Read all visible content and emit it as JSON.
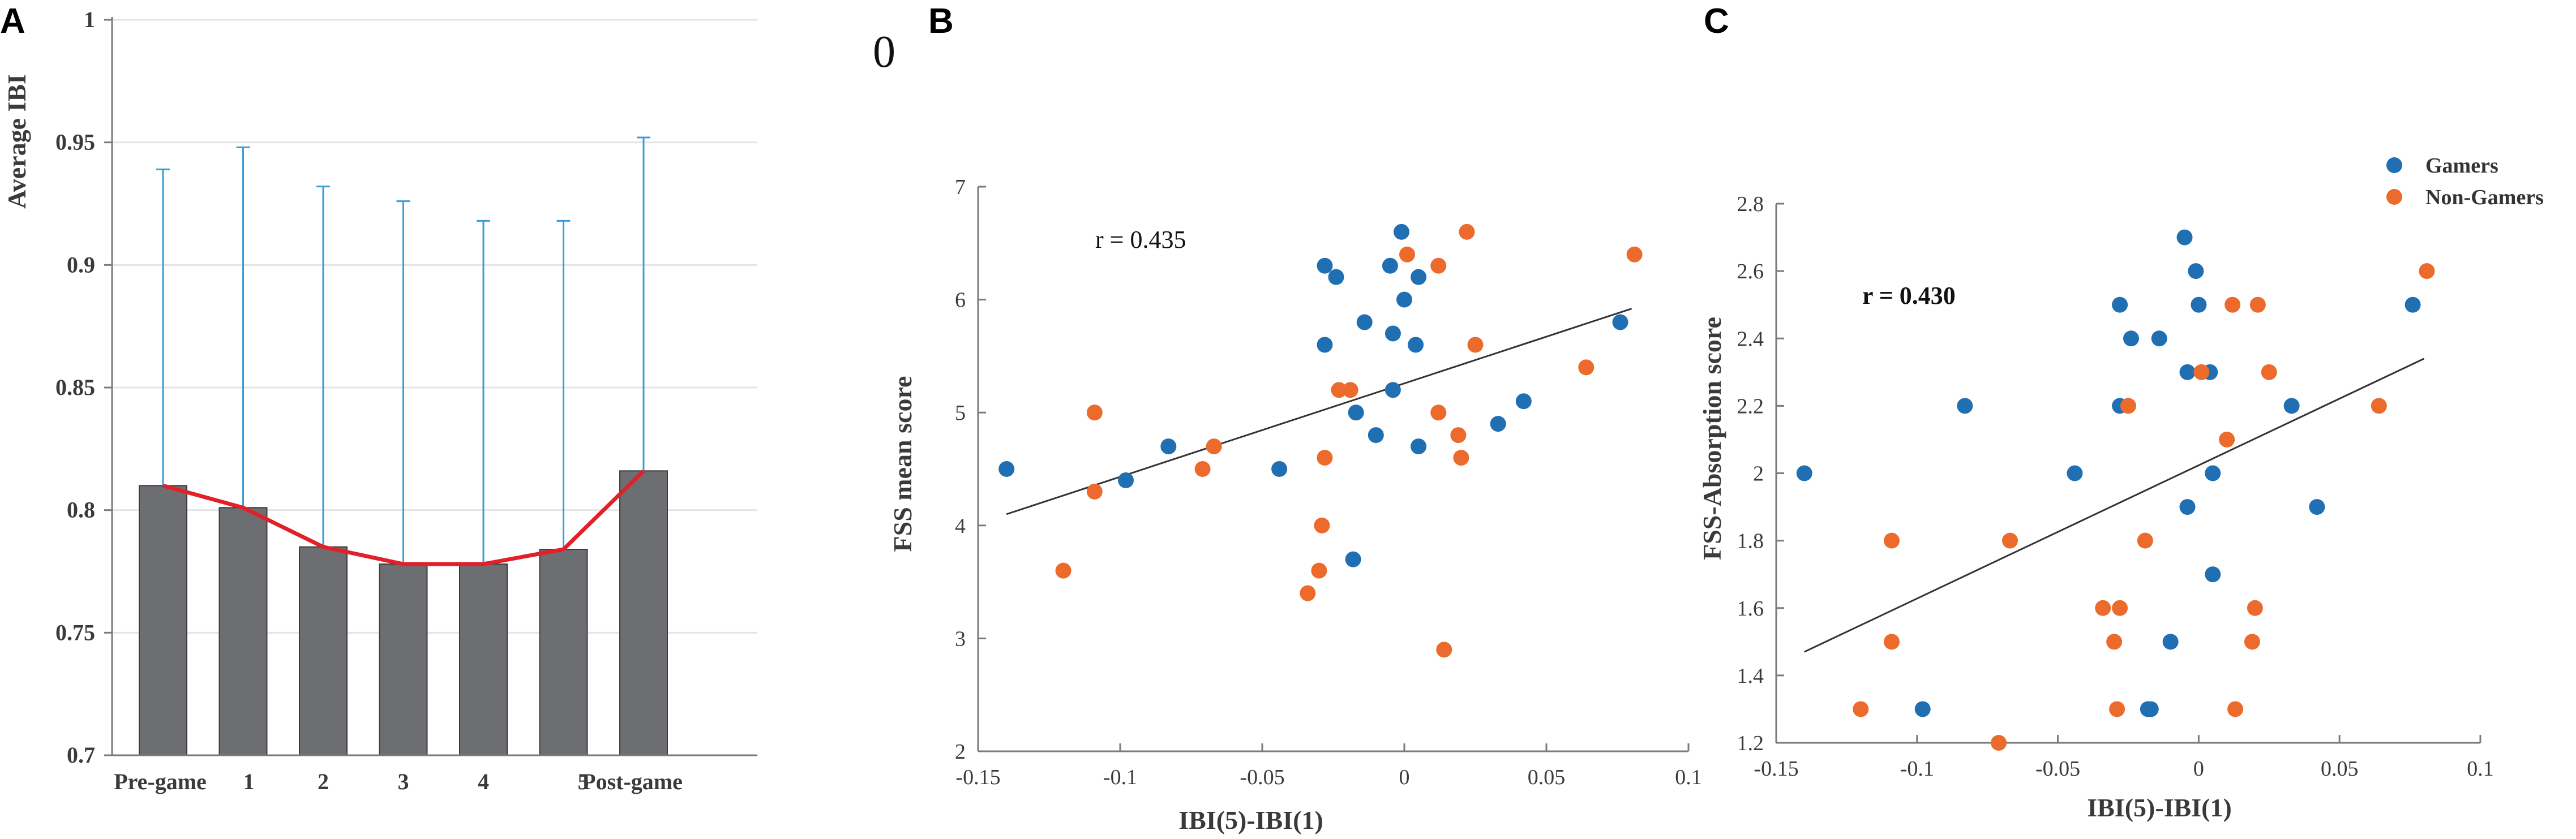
{
  "stray_mark": "0",
  "colors": {
    "gamers": "#1f6fb2",
    "non_gamers": "#ec6a2c",
    "bars": "#6d6e71",
    "errorbar": "#3b9bd6",
    "trend": "#e2202a",
    "axis": "#7a7a7a",
    "grid": "#e4e4e4",
    "fit": "#333333"
  },
  "chart_data": [
    {
      "panel": "A",
      "type": "bar",
      "ylabel": "Average IBI",
      "xlabel": "",
      "categories": [
        "Pre-game",
        "1",
        "2",
        "3",
        "4",
        "5",
        "Post-game"
      ],
      "values": [
        0.81,
        0.801,
        0.785,
        0.778,
        0.778,
        0.784,
        0.816
      ],
      "error_upper": [
        0.939,
        0.948,
        0.932,
        0.926,
        0.918,
        0.918,
        0.952
      ],
      "trend_line": [
        0.81,
        0.801,
        0.785,
        0.778,
        0.778,
        0.784,
        0.816
      ],
      "ylim": [
        0.7,
        1.0
      ],
      "yticks": [
        0.7,
        0.75,
        0.8,
        0.85,
        0.9,
        0.95,
        1
      ],
      "ytick_labels": [
        "0.7",
        "0.75",
        "0.8",
        "0.85",
        "0.9",
        "0.95",
        "1"
      ],
      "grid": true
    },
    {
      "panel": "B",
      "type": "scatter",
      "xlabel": "IBI(5)-IBI(1)",
      "ylabel": "FSS mean score",
      "xlim": [
        -0.15,
        0.1
      ],
      "ylim": [
        2,
        7
      ],
      "xticks": [
        -0.15,
        -0.1,
        -0.05,
        0,
        0.05,
        0.1
      ],
      "xtick_labels": [
        "-0.15",
        "-0.1",
        "-0.05",
        "0",
        "0.05",
        "0.1"
      ],
      "yticks": [
        2,
        3,
        4,
        5,
        6,
        7
      ],
      "ytick_labels": [
        "2",
        "3",
        "4",
        "5",
        "6",
        "7"
      ],
      "annotation": "r = 0.435",
      "fit_line": [
        [
          -0.14,
          4.1
        ],
        [
          0.08,
          5.92
        ]
      ],
      "series": [
        {
          "name": "Gamers",
          "points": [
            [
              -0.14,
              4.5
            ],
            [
              -0.098,
              4.4
            ],
            [
              -0.083,
              4.7
            ],
            [
              -0.044,
              4.5
            ],
            [
              -0.028,
              6.3
            ],
            [
              -0.028,
              5.6
            ],
            [
              -0.024,
              6.2
            ],
            [
              -0.018,
              3.7
            ],
            [
              -0.017,
              5.0
            ],
            [
              -0.014,
              5.8
            ],
            [
              -0.01,
              4.8
            ],
            [
              -0.005,
              6.3
            ],
            [
              -0.004,
              5.7
            ],
            [
              -0.004,
              5.2
            ],
            [
              -0.001,
              6.6
            ],
            [
              0.0,
              6.0
            ],
            [
              0.004,
              5.6
            ],
            [
              0.005,
              6.2
            ],
            [
              0.005,
              4.7
            ],
            [
              0.033,
              4.9
            ],
            [
              0.042,
              5.1
            ],
            [
              0.076,
              5.8
            ]
          ]
        },
        {
          "name": "Non-Gamers",
          "points": [
            [
              -0.12,
              3.6
            ],
            [
              -0.109,
              5.0
            ],
            [
              -0.109,
              4.3
            ],
            [
              -0.071,
              4.5
            ],
            [
              -0.067,
              4.7
            ],
            [
              -0.034,
              3.4
            ],
            [
              -0.03,
              3.6
            ],
            [
              -0.029,
              4.0
            ],
            [
              -0.028,
              4.6
            ],
            [
              -0.023,
              5.2
            ],
            [
              -0.019,
              5.2
            ],
            [
              0.001,
              6.4
            ],
            [
              0.012,
              5.0
            ],
            [
              0.012,
              6.3
            ],
            [
              0.014,
              2.9
            ],
            [
              0.019,
              4.8
            ],
            [
              0.02,
              4.6
            ],
            [
              0.022,
              6.6
            ],
            [
              0.025,
              5.6
            ],
            [
              0.064,
              5.4
            ],
            [
              0.081,
              6.4
            ]
          ]
        }
      ]
    },
    {
      "panel": "C",
      "type": "scatter",
      "xlabel": "IBI(5)-IBI(1)",
      "ylabel": "FSS-Absorption score",
      "xlim": [
        -0.15,
        0.1
      ],
      "ylim": [
        1.2,
        2.8
      ],
      "xticks": [
        -0.15,
        -0.1,
        -0.05,
        0,
        0.05,
        0.1
      ],
      "xtick_labels": [
        "-0.15",
        "-0.1",
        "-0.05",
        "0",
        "0.05",
        "0.1"
      ],
      "yticks": [
        1.2,
        1.4,
        1.6,
        1.8,
        2.0,
        2.2,
        2.4,
        2.6,
        2.8
      ],
      "ytick_labels": [
        "1.2",
        "1.4",
        "1.6",
        "1.8",
        "2",
        "2.2",
        "2.4",
        "2.6",
        "2.8"
      ],
      "annotation": "r = 0.430",
      "legend": [
        "Gamers",
        "Non-Gamers"
      ],
      "fit_line": [
        [
          -0.14,
          1.47
        ],
        [
          0.08,
          2.34
        ]
      ],
      "series": [
        {
          "name": "Gamers",
          "points": [
            [
              -0.14,
              2.0
            ],
            [
              -0.098,
              1.3
            ],
            [
              -0.083,
              2.2
            ],
            [
              -0.044,
              2.0
            ],
            [
              -0.028,
              2.5
            ],
            [
              -0.028,
              2.2
            ],
            [
              -0.024,
              2.4
            ],
            [
              -0.018,
              1.3
            ],
            [
              -0.017,
              1.3
            ],
            [
              -0.014,
              2.4
            ],
            [
              -0.01,
              1.5
            ],
            [
              -0.005,
              2.7
            ],
            [
              -0.004,
              2.3
            ],
            [
              -0.004,
              1.9
            ],
            [
              -0.001,
              2.6
            ],
            [
              0.0,
              2.5
            ],
            [
              0.004,
              2.3
            ],
            [
              0.005,
              2.0
            ],
            [
              0.005,
              1.7
            ],
            [
              0.033,
              2.2
            ],
            [
              0.042,
              1.9
            ],
            [
              0.076,
              2.5
            ]
          ]
        },
        {
          "name": "Non-Gamers",
          "points": [
            [
              -0.12,
              1.3
            ],
            [
              -0.109,
              1.8
            ],
            [
              -0.109,
              1.5
            ],
            [
              -0.071,
              1.2
            ],
            [
              -0.067,
              1.8
            ],
            [
              -0.034,
              1.6
            ],
            [
              -0.03,
              1.5
            ],
            [
              -0.029,
              1.3
            ],
            [
              -0.028,
              1.6
            ],
            [
              -0.025,
              2.2
            ],
            [
              -0.019,
              1.8
            ],
            [
              0.001,
              2.3
            ],
            [
              0.01,
              2.1
            ],
            [
              0.012,
              2.5
            ],
            [
              0.013,
              1.3
            ],
            [
              0.019,
              1.5
            ],
            [
              0.02,
              1.6
            ],
            [
              0.021,
              2.5
            ],
            [
              0.025,
              2.3
            ],
            [
              0.064,
              2.2
            ],
            [
              0.081,
              2.6
            ]
          ]
        }
      ]
    }
  ]
}
